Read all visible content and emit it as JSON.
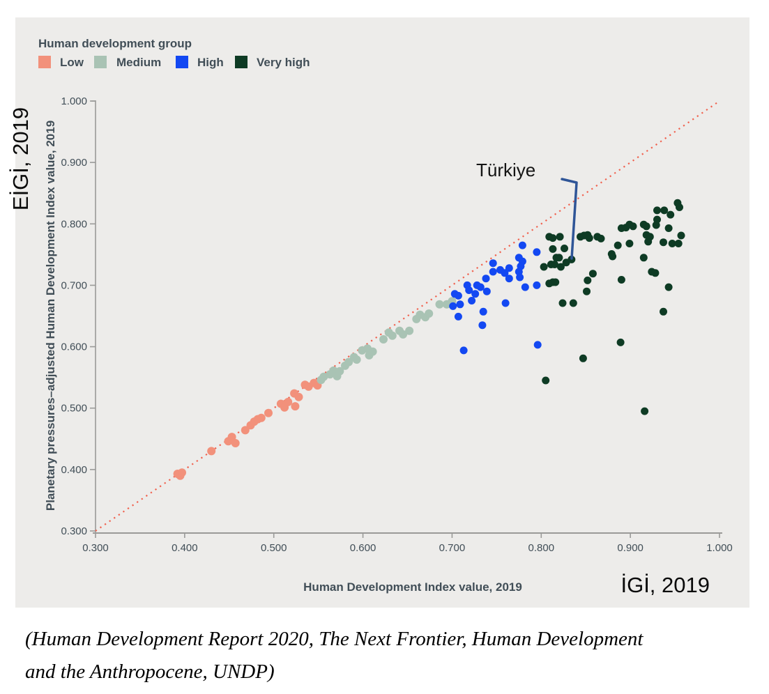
{
  "legend": {
    "title": "Human development group",
    "items": [
      {
        "label": "Low",
        "color": "#f2917b"
      },
      {
        "label": "Medium",
        "color": "#a9c3b4"
      },
      {
        "label": "High",
        "color": "#1348f2"
      },
      {
        "label": "Very high",
        "color": "#0e3b24"
      }
    ]
  },
  "y_axis_secondary_label": "EİGİ, 2019",
  "x_axis_secondary_label": "İGİ, 2019",
  "caption": {
    "line1": "(Human Development Report 2020, The Next Frontier, Human Development",
    "line2": "and the Anthropocene, UNDP)"
  },
  "chart_data": {
    "type": "scatter",
    "title": "",
    "xlabel": "Human Development Index value, 2019",
    "ylabel": "Planetary pressures–adjusted Human Development Index value, 2019",
    "xlim": [
      0.3,
      1.0
    ],
    "ylim": [
      0.3,
      1.0
    ],
    "grid": false,
    "legend_position": "top-left",
    "x_ticks": [
      "0.300",
      "0.400",
      "0.500",
      "0.600",
      "0.700",
      "0.800",
      "0.900",
      "1.000"
    ],
    "y_ticks": [
      "0.300",
      "0.400",
      "0.500",
      "0.600",
      "0.700",
      "0.800",
      "0.900",
      "1.000"
    ],
    "reference_line": {
      "style": "dotted",
      "color": "#f0614e",
      "from": [
        0.3,
        0.3
      ],
      "to": [
        1.0,
        1.0
      ]
    },
    "annotations": [
      {
        "text": "Türkiye",
        "target": [
          0.834,
          0.742
        ],
        "color": "#2f5597"
      }
    ],
    "series": [
      {
        "name": "Low",
        "color": "#f2917b",
        "points": [
          [
            0.392,
            0.393
          ],
          [
            0.395,
            0.39
          ],
          [
            0.397,
            0.395
          ],
          [
            0.43,
            0.43
          ],
          [
            0.449,
            0.446
          ],
          [
            0.453,
            0.453
          ],
          [
            0.457,
            0.443
          ],
          [
            0.468,
            0.464
          ],
          [
            0.474,
            0.472
          ],
          [
            0.478,
            0.478
          ],
          [
            0.482,
            0.482
          ],
          [
            0.486,
            0.484
          ],
          [
            0.494,
            0.492
          ],
          [
            0.508,
            0.507
          ],
          [
            0.512,
            0.501
          ],
          [
            0.516,
            0.51
          ],
          [
            0.524,
            0.503
          ],
          [
            0.523,
            0.524
          ],
          [
            0.528,
            0.518
          ],
          [
            0.535,
            0.538
          ],
          [
            0.539,
            0.535
          ],
          [
            0.545,
            0.541
          ],
          [
            0.549,
            0.537
          ]
        ]
      },
      {
        "name": "Medium",
        "color": "#a9c3b4",
        "points": [
          [
            0.553,
            0.546
          ],
          [
            0.556,
            0.551
          ],
          [
            0.563,
            0.555
          ],
          [
            0.567,
            0.561
          ],
          [
            0.571,
            0.552
          ],
          [
            0.574,
            0.56
          ],
          [
            0.58,
            0.569
          ],
          [
            0.584,
            0.575
          ],
          [
            0.59,
            0.583
          ],
          [
            0.593,
            0.579
          ],
          [
            0.599,
            0.594
          ],
          [
            0.605,
            0.597
          ],
          [
            0.607,
            0.586
          ],
          [
            0.611,
            0.592
          ],
          [
            0.623,
            0.612
          ],
          [
            0.629,
            0.623
          ],
          [
            0.633,
            0.618
          ],
          [
            0.641,
            0.626
          ],
          [
            0.645,
            0.62
          ],
          [
            0.652,
            0.626
          ],
          [
            0.66,
            0.645
          ],
          [
            0.664,
            0.652
          ],
          [
            0.67,
            0.648
          ],
          [
            0.674,
            0.654
          ],
          [
            0.686,
            0.669
          ],
          [
            0.694,
            0.669
          ],
          [
            0.7,
            0.674
          ]
        ]
      },
      {
        "name": "High",
        "color": "#1348f2",
        "points": [
          [
            0.779,
            0.765
          ],
          [
            0.795,
            0.754
          ],
          [
            0.775,
            0.745
          ],
          [
            0.779,
            0.739
          ],
          [
            0.746,
            0.736
          ],
          [
            0.777,
            0.731
          ],
          [
            0.754,
            0.725
          ],
          [
            0.759,
            0.72
          ],
          [
            0.764,
            0.728
          ],
          [
            0.746,
            0.722
          ],
          [
            0.775,
            0.722
          ],
          [
            0.776,
            0.713
          ],
          [
            0.764,
            0.711
          ],
          [
            0.738,
            0.711
          ],
          [
            0.728,
            0.7
          ],
          [
            0.732,
            0.697
          ],
          [
            0.717,
            0.7
          ],
          [
            0.719,
            0.692
          ],
          [
            0.739,
            0.69
          ],
          [
            0.782,
            0.697
          ],
          [
            0.795,
            0.7
          ],
          [
            0.726,
            0.686
          ],
          [
            0.703,
            0.686
          ],
          [
            0.707,
            0.683
          ],
          [
            0.722,
            0.675
          ],
          [
            0.701,
            0.666
          ],
          [
            0.709,
            0.669
          ],
          [
            0.707,
            0.649
          ],
          [
            0.735,
            0.657
          ],
          [
            0.76,
            0.671
          ],
          [
            0.734,
            0.635
          ],
          [
            0.713,
            0.594
          ],
          [
            0.796,
            0.603
          ]
        ]
      },
      {
        "name": "Very high",
        "color": "#0e3b24",
        "points": [
          [
            0.953,
            0.834
          ],
          [
            0.955,
            0.827
          ],
          [
            0.93,
            0.822
          ],
          [
            0.938,
            0.822
          ],
          [
            0.945,
            0.815
          ],
          [
            0.93,
            0.807
          ],
          [
            0.929,
            0.798
          ],
          [
            0.943,
            0.793
          ],
          [
            0.89,
            0.793
          ],
          [
            0.895,
            0.794
          ],
          [
            0.899,
            0.799
          ],
          [
            0.903,
            0.796
          ],
          [
            0.915,
            0.799
          ],
          [
            0.918,
            0.796
          ],
          [
            0.918,
            0.782
          ],
          [
            0.922,
            0.779
          ],
          [
            0.957,
            0.781
          ],
          [
            0.937,
            0.77
          ],
          [
            0.947,
            0.768
          ],
          [
            0.954,
            0.768
          ],
          [
            0.92,
            0.771
          ],
          [
            0.886,
            0.765
          ],
          [
            0.899,
            0.768
          ],
          [
            0.809,
            0.779
          ],
          [
            0.813,
            0.777
          ],
          [
            0.821,
            0.779
          ],
          [
            0.826,
            0.76
          ],
          [
            0.813,
            0.759
          ],
          [
            0.817,
            0.745
          ],
          [
            0.82,
            0.745
          ],
          [
            0.828,
            0.737
          ],
          [
            0.834,
            0.742
          ],
          [
            0.811,
            0.734
          ],
          [
            0.815,
            0.734
          ],
          [
            0.803,
            0.73
          ],
          [
            0.822,
            0.73
          ],
          [
            0.844,
            0.779
          ],
          [
            0.848,
            0.781
          ],
          [
            0.852,
            0.782
          ],
          [
            0.854,
            0.777
          ],
          [
            0.863,
            0.779
          ],
          [
            0.867,
            0.776
          ],
          [
            0.879,
            0.751
          ],
          [
            0.88,
            0.747
          ],
          [
            0.915,
            0.745
          ],
          [
            0.809,
            0.703
          ],
          [
            0.813,
            0.705
          ],
          [
            0.816,
            0.705
          ],
          [
            0.858,
            0.719
          ],
          [
            0.852,
            0.708
          ],
          [
            0.851,
            0.69
          ],
          [
            0.824,
            0.671
          ],
          [
            0.836,
            0.671
          ],
          [
            0.89,
            0.709
          ],
          [
            0.924,
            0.722
          ],
          [
            0.928,
            0.72
          ],
          [
            0.943,
            0.697
          ],
          [
            0.937,
            0.657
          ],
          [
            0.889,
            0.607
          ],
          [
            0.847,
            0.581
          ],
          [
            0.805,
            0.545
          ],
          [
            0.916,
            0.495
          ]
        ]
      }
    ]
  }
}
